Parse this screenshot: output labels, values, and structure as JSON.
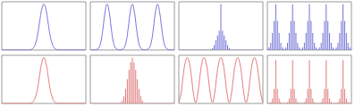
{
  "chart_data": [
    {
      "type": "line",
      "color": "#7272d6",
      "xlim": [
        0,
        100
      ],
      "ylim": [
        0,
        1
      ],
      "tick_labels": false,
      "grid": false,
      "x": [
        0,
        2.5,
        5,
        7.5,
        10,
        12.5,
        15,
        17.5,
        20,
        22.5,
        25,
        27.5,
        30,
        32.5,
        35,
        37.5,
        40,
        42.5,
        45,
        47.5,
        50,
        52.5,
        55,
        57.5,
        60,
        62.5,
        65,
        67.5,
        70,
        72.5,
        75,
        77.5,
        80,
        82.5,
        85,
        87.5,
        90,
        92.5,
        95,
        97.5,
        100
      ],
      "values": [
        0,
        0,
        0,
        0,
        0,
        0,
        0,
        0,
        0,
        0,
        0,
        0,
        0,
        0,
        0.01,
        0.04,
        0.13,
        0.3,
        0.58,
        0.84,
        0.95,
        0.84,
        0.58,
        0.3,
        0.13,
        0.04,
        0.01,
        0,
        0,
        0,
        0,
        0,
        0,
        0,
        0,
        0,
        0,
        0,
        0,
        0,
        0
      ]
    },
    {
      "type": "line",
      "color": "#7272d6",
      "xlim": [
        0,
        100
      ],
      "ylim": [
        0,
        1
      ],
      "tick_labels": false,
      "grid": false,
      "x": [
        0,
        2.5,
        5,
        7.5,
        10,
        12.5,
        15,
        17.5,
        20,
        22.5,
        25,
        27.5,
        30,
        32.5,
        35,
        37.5,
        40,
        42.5,
        45,
        47.5,
        50,
        52.5,
        55,
        57.5,
        60,
        62.5,
        65,
        67.5,
        70,
        72.5,
        75,
        77.5,
        80,
        82.5,
        85,
        87.5,
        90,
        92.5,
        95,
        97.5,
        100
      ],
      "values": [
        0,
        0,
        0,
        0.01,
        0.04,
        0.16,
        0.44,
        0.78,
        0.95,
        0.78,
        0.44,
        0.16,
        0.04,
        0.01,
        0,
        0.01,
        0.04,
        0.16,
        0.44,
        0.78,
        0.95,
        0.78,
        0.44,
        0.16,
        0.04,
        0.01,
        0,
        0.01,
        0.04,
        0.16,
        0.44,
        0.78,
        0.95,
        0.78,
        0.44,
        0.16,
        0.04,
        0.01,
        0,
        0,
        0
      ]
    },
    {
      "type": "bar",
      "color": "#7272d6",
      "xlim": [
        0,
        100
      ],
      "ylim": [
        0,
        1
      ],
      "tick_labels": false,
      "grid": false,
      "x": [
        0,
        2,
        4,
        6,
        8,
        10,
        12,
        14,
        16,
        18,
        20,
        22,
        24,
        26,
        28,
        30,
        32,
        34,
        36,
        38,
        40,
        42,
        44,
        46,
        48,
        50,
        52,
        54,
        56,
        58,
        60,
        62,
        64,
        66,
        68,
        70,
        72,
        74,
        76,
        78,
        80,
        82,
        84,
        86,
        88,
        90,
        92,
        94,
        96,
        98,
        100
      ],
      "values": [
        0.01,
        0.01,
        0.01,
        0.01,
        0.01,
        0.01,
        0.01,
        0.01,
        0.01,
        0.01,
        0.01,
        0.01,
        0.01,
        0.01,
        0.01,
        0.01,
        0.01,
        0.01,
        0.01,
        0.01,
        0.04,
        0.1,
        0.2,
        0.3,
        0.4,
        0.95,
        0.4,
        0.3,
        0.2,
        0.1,
        0.04,
        0.01,
        0.01,
        0.01,
        0.01,
        0.01,
        0.01,
        0.01,
        0.01,
        0.01,
        0.01,
        0.01,
        0.01,
        0.01,
        0.01,
        0.01,
        0.01,
        0.01,
        0.01,
        0.01,
        0.01
      ]
    },
    {
      "type": "bar",
      "color": "#7272d6",
      "xlim": [
        0,
        100
      ],
      "ylim": [
        0,
        1
      ],
      "tick_labels": false,
      "grid": false,
      "x": [
        0,
        2,
        4,
        6,
        8,
        10,
        12,
        14,
        16,
        18,
        20,
        22,
        24,
        26,
        28,
        30,
        32,
        34,
        36,
        38,
        40,
        42,
        44,
        46,
        48,
        50,
        52,
        54,
        56,
        58,
        60,
        62,
        64,
        66,
        68,
        70,
        72,
        74,
        76,
        78,
        80,
        82,
        84,
        86,
        88,
        90,
        92,
        94,
        96,
        98,
        100
      ],
      "values": [
        0.02,
        0.05,
        0.15,
        0.35,
        0.6,
        0.95,
        0.6,
        0.35,
        0.15,
        0.05,
        0.02,
        0.05,
        0.15,
        0.35,
        0.6,
        0.95,
        0.6,
        0.35,
        0.15,
        0.05,
        0.02,
        0.05,
        0.15,
        0.35,
        0.6,
        0.95,
        0.6,
        0.35,
        0.15,
        0.05,
        0.02,
        0.05,
        0.15,
        0.35,
        0.6,
        0.95,
        0.6,
        0.35,
        0.15,
        0.05,
        0.02,
        0.05,
        0.15,
        0.35,
        0.6,
        0.95,
        0.6,
        0.35,
        0.15,
        0.05,
        0.02
      ]
    },
    {
      "type": "line",
      "color": "#e07a7a",
      "xlim": [
        0,
        100
      ],
      "ylim": [
        0,
        1
      ],
      "tick_labels": false,
      "grid": false,
      "x": [
        0,
        2.5,
        5,
        7.5,
        10,
        12.5,
        15,
        17.5,
        20,
        22.5,
        25,
        27.5,
        30,
        32.5,
        35,
        37.5,
        40,
        42.5,
        45,
        47.5,
        50,
        52.5,
        55,
        57.5,
        60,
        62.5,
        65,
        67.5,
        70,
        72.5,
        75,
        77.5,
        80,
        82.5,
        85,
        87.5,
        90,
        92.5,
        95,
        97.5,
        100
      ],
      "values": [
        0,
        0,
        0,
        0,
        0,
        0,
        0,
        0,
        0,
        0,
        0,
        0,
        0,
        0,
        0.01,
        0.04,
        0.13,
        0.3,
        0.58,
        0.84,
        0.95,
        0.84,
        0.58,
        0.3,
        0.13,
        0.04,
        0.01,
        0,
        0,
        0,
        0,
        0,
        0,
        0,
        0,
        0,
        0,
        0,
        0,
        0,
        0
      ]
    },
    {
      "type": "bar",
      "color": "#e07a7a",
      "xlim": [
        0,
        100
      ],
      "ylim": [
        0,
        1
      ],
      "tick_labels": false,
      "grid": false,
      "x": [
        0,
        2,
        4,
        6,
        8,
        10,
        12,
        14,
        16,
        18,
        20,
        22,
        24,
        26,
        28,
        30,
        32,
        34,
        36,
        38,
        40,
        42,
        44,
        46,
        48,
        50,
        52,
        54,
        56,
        58,
        60,
        62,
        64,
        66,
        68,
        70,
        72,
        74,
        76,
        78,
        80,
        82,
        84,
        86,
        88,
        90,
        92,
        94,
        96,
        98,
        100
      ],
      "values": [
        0.01,
        0.01,
        0.01,
        0.01,
        0.01,
        0.01,
        0.01,
        0.01,
        0.01,
        0.01,
        0.01,
        0.01,
        0.01,
        0.01,
        0.01,
        0.01,
        0.01,
        0.01,
        0.02,
        0.06,
        0.15,
        0.3,
        0.5,
        0.7,
        0.85,
        0.95,
        0.85,
        0.7,
        0.5,
        0.3,
        0.15,
        0.06,
        0.02,
        0.01,
        0.01,
        0.01,
        0.01,
        0.01,
        0.01,
        0.01,
        0.01,
        0.01,
        0.01,
        0.01,
        0.01,
        0.01,
        0.01,
        0.01,
        0.01,
        0.01,
        0.01
      ]
    },
    {
      "type": "line",
      "color": "#e07a7a",
      "xlim": [
        0,
        100
      ],
      "ylim": [
        0,
        1
      ],
      "tick_labels": false,
      "grid": false,
      "x": [
        0,
        2.5,
        5,
        7.5,
        10,
        12.5,
        15,
        17.5,
        20,
        22.5,
        25,
        27.5,
        30,
        32.5,
        35,
        37.5,
        40,
        42.5,
        45,
        47.5,
        50,
        52.5,
        55,
        57.5,
        60,
        62.5,
        65,
        67.5,
        70,
        72.5,
        75,
        77.5,
        80,
        82.5,
        85,
        87.5,
        90,
        92.5,
        95,
        97.5,
        100
      ],
      "values": [
        0.02,
        0.2,
        0.55,
        0.84,
        0.95,
        0.84,
        0.55,
        0.2,
        0.02,
        0.2,
        0.55,
        0.84,
        0.95,
        0.84,
        0.55,
        0.2,
        0.02,
        0.2,
        0.55,
        0.84,
        0.95,
        0.84,
        0.55,
        0.2,
        0.02,
        0.2,
        0.55,
        0.84,
        0.95,
        0.84,
        0.55,
        0.2,
        0.02,
        0.2,
        0.55,
        0.84,
        0.95,
        0.84,
        0.55,
        0.2,
        0.02
      ]
    },
    {
      "type": "bar",
      "color": "#e07a7a",
      "xlim": [
        0,
        100
      ],
      "ylim": [
        0,
        1
      ],
      "tick_labels": false,
      "grid": false,
      "x": [
        0,
        2,
        4,
        6,
        8,
        10,
        12,
        14,
        16,
        18,
        20,
        22,
        24,
        26,
        28,
        30,
        32,
        34,
        36,
        38,
        40,
        42,
        44,
        46,
        48,
        50,
        52,
        54,
        56,
        58,
        60,
        62,
        64,
        66,
        68,
        70,
        72,
        74,
        76,
        78,
        80,
        82,
        84,
        86,
        88,
        90,
        92,
        94,
        96,
        98,
        100
      ],
      "values": [
        0.01,
        0.01,
        0.03,
        0.1,
        0.3,
        0.9,
        0.3,
        0.1,
        0.03,
        0.01,
        0.01,
        0.01,
        0.03,
        0.1,
        0.3,
        0.9,
        0.3,
        0.1,
        0.03,
        0.01,
        0.01,
        0.01,
        0.03,
        0.1,
        0.3,
        0.9,
        0.3,
        0.1,
        0.03,
        0.01,
        0.01,
        0.01,
        0.03,
        0.1,
        0.3,
        0.9,
        0.3,
        0.1,
        0.03,
        0.01,
        0.01,
        0.01,
        0.03,
        0.1,
        0.3,
        0.9,
        0.3,
        0.1,
        0.03,
        0.01,
        0.01
      ]
    }
  ]
}
